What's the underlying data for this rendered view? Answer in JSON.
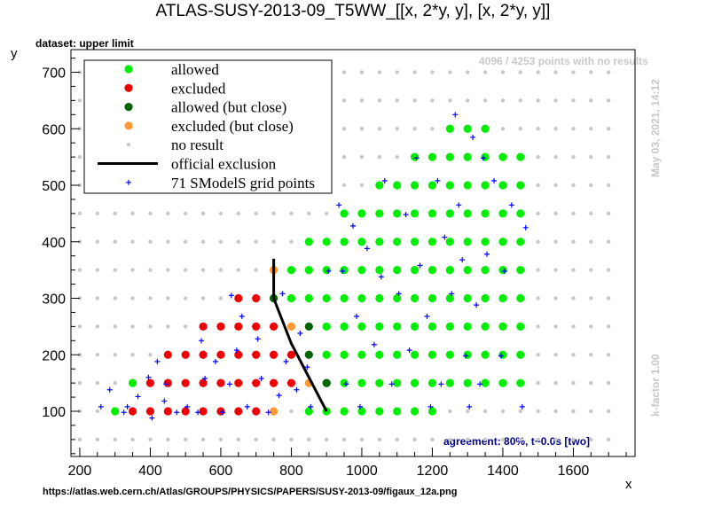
{
  "chart_data": {
    "type": "scatter",
    "title": "ATLAS-SUSY-2013-09_T5WW_[[x, 2*y, y], [x, 2*y, y]]",
    "subtitle": "dataset: upper limit",
    "xlabel": "x",
    "ylabel": "y",
    "xlim": [
      175,
      1775
    ],
    "ylim": [
      20,
      740
    ],
    "xticks": [
      200,
      400,
      600,
      800,
      1000,
      1200,
      1400,
      1600
    ],
    "yticks": [
      100,
      200,
      300,
      400,
      500,
      600,
      700
    ],
    "grid": false,
    "legend_position": "top-left",
    "annotations": {
      "no_results": "4096 / 4253 points with no results",
      "timestamp": "May 03, 2021, 14:12",
      "kfactor": "k-factor 1.00",
      "agreement": "agreement: 80%, t~0.0s [two]",
      "source_url": "https://atlas.web.cern.ch/Atlas/GROUPS/PHYSICS/PAPERS/SUSY-2013-09/figaux_12a.png"
    },
    "colors": {
      "allowed": "#00ee00",
      "excluded": "#ee0000",
      "allowed_close": "#006400",
      "excluded_close": "#ff9933",
      "no_result": "#c8c8c8",
      "official": "#000000",
      "grid_points": "#0000ff"
    },
    "series": [
      {
        "name": "allowed",
        "marker": "circle",
        "points": [
          [
            300,
            100
          ],
          [
            350,
            150
          ],
          [
            850,
            100
          ],
          [
            900,
            100
          ],
          [
            950,
            100
          ],
          [
            1000,
            100
          ],
          [
            1050,
            100
          ],
          [
            1100,
            100
          ],
          [
            1150,
            100
          ],
          [
            1200,
            100
          ],
          [
            900,
            150
          ],
          [
            950,
            150
          ],
          [
            1000,
            150
          ],
          [
            1050,
            150
          ],
          [
            1100,
            150
          ],
          [
            1150,
            150
          ],
          [
            1200,
            150
          ],
          [
            1250,
            150
          ],
          [
            1300,
            150
          ],
          [
            1350,
            150
          ],
          [
            1400,
            150
          ],
          [
            1450,
            150
          ],
          [
            900,
            200
          ],
          [
            950,
            200
          ],
          [
            1000,
            200
          ],
          [
            1050,
            200
          ],
          [
            1100,
            200
          ],
          [
            1150,
            200
          ],
          [
            1200,
            200
          ],
          [
            1250,
            200
          ],
          [
            1300,
            200
          ],
          [
            1350,
            200
          ],
          [
            1400,
            200
          ],
          [
            1450,
            200
          ],
          [
            900,
            250
          ],
          [
            950,
            250
          ],
          [
            1000,
            250
          ],
          [
            1050,
            250
          ],
          [
            1100,
            250
          ],
          [
            1150,
            250
          ],
          [
            1200,
            250
          ],
          [
            1250,
            250
          ],
          [
            1300,
            250
          ],
          [
            1350,
            250
          ],
          [
            1400,
            250
          ],
          [
            1450,
            250
          ],
          [
            800,
            300
          ],
          [
            850,
            300
          ],
          [
            900,
            300
          ],
          [
            950,
            300
          ],
          [
            1000,
            300
          ],
          [
            1050,
            300
          ],
          [
            1100,
            300
          ],
          [
            1150,
            300
          ],
          [
            1200,
            300
          ],
          [
            1250,
            300
          ],
          [
            1300,
            300
          ],
          [
            1350,
            300
          ],
          [
            1400,
            300
          ],
          [
            1450,
            300
          ],
          [
            800,
            350
          ],
          [
            850,
            350
          ],
          [
            900,
            350
          ],
          [
            950,
            350
          ],
          [
            1000,
            350
          ],
          [
            1050,
            350
          ],
          [
            1100,
            350
          ],
          [
            1150,
            350
          ],
          [
            1200,
            350
          ],
          [
            1250,
            350
          ],
          [
            1300,
            350
          ],
          [
            1350,
            350
          ],
          [
            1400,
            350
          ],
          [
            1450,
            350
          ],
          [
            850,
            400
          ],
          [
            900,
            400
          ],
          [
            950,
            400
          ],
          [
            1000,
            400
          ],
          [
            1050,
            400
          ],
          [
            1100,
            400
          ],
          [
            1150,
            400
          ],
          [
            1200,
            400
          ],
          [
            1250,
            400
          ],
          [
            1300,
            400
          ],
          [
            1350,
            400
          ],
          [
            1400,
            400
          ],
          [
            1450,
            400
          ],
          [
            950,
            450
          ],
          [
            1000,
            450
          ],
          [
            1050,
            450
          ],
          [
            1100,
            450
          ],
          [
            1150,
            450
          ],
          [
            1200,
            450
          ],
          [
            1250,
            450
          ],
          [
            1300,
            450
          ],
          [
            1350,
            450
          ],
          [
            1400,
            450
          ],
          [
            1450,
            450
          ],
          [
            1050,
            500
          ],
          [
            1100,
            500
          ],
          [
            1150,
            500
          ],
          [
            1200,
            500
          ],
          [
            1250,
            500
          ],
          [
            1300,
            500
          ],
          [
            1350,
            500
          ],
          [
            1400,
            500
          ],
          [
            1450,
            500
          ],
          [
            1150,
            550
          ],
          [
            1200,
            550
          ],
          [
            1250,
            550
          ],
          [
            1300,
            550
          ],
          [
            1350,
            550
          ],
          [
            1400,
            550
          ],
          [
            1450,
            550
          ],
          [
            1250,
            600
          ],
          [
            1300,
            600
          ],
          [
            1350,
            600
          ]
        ]
      },
      {
        "name": "excluded",
        "marker": "circle",
        "points": [
          [
            350,
            100
          ],
          [
            400,
            100
          ],
          [
            450,
            100
          ],
          [
            500,
            100
          ],
          [
            550,
            100
          ],
          [
            600,
            100
          ],
          [
            650,
            100
          ],
          [
            700,
            100
          ],
          [
            400,
            150
          ],
          [
            450,
            150
          ],
          [
            500,
            150
          ],
          [
            550,
            150
          ],
          [
            600,
            150
          ],
          [
            650,
            150
          ],
          [
            700,
            150
          ],
          [
            750,
            150
          ],
          [
            800,
            150
          ],
          [
            450,
            200
          ],
          [
            500,
            200
          ],
          [
            550,
            200
          ],
          [
            600,
            200
          ],
          [
            650,
            200
          ],
          [
            700,
            200
          ],
          [
            750,
            200
          ],
          [
            800,
            200
          ],
          [
            550,
            250
          ],
          [
            600,
            250
          ],
          [
            650,
            250
          ],
          [
            700,
            250
          ],
          [
            750,
            250
          ],
          [
            650,
            300
          ],
          [
            700,
            300
          ]
        ]
      },
      {
        "name": "allowed (but close)",
        "marker": "circle",
        "points": [
          [
            750,
            300
          ],
          [
            850,
            250
          ],
          [
            850,
            200
          ],
          [
            900,
            150
          ]
        ]
      },
      {
        "name": "excluded (but close)",
        "marker": "circle",
        "points": [
          [
            750,
            350
          ],
          [
            800,
            250
          ],
          [
            850,
            150
          ],
          [
            750,
            100
          ]
        ]
      },
      {
        "name": "no result",
        "marker": "small-circle",
        "grid": {
          "x_start": 200,
          "x_end": 1700,
          "x_step": 50,
          "y_start": 50,
          "y_end": 700,
          "y_step": 50
        }
      },
      {
        "name": "official exclusion",
        "marker": "line",
        "points": [
          [
            750,
            370
          ],
          [
            750,
            300
          ],
          [
            800,
            220
          ],
          [
            900,
            100
          ]
        ]
      },
      {
        "name": "71 SModelS grid points",
        "marker": "plus",
        "points": [
          [
            260,
            108
          ],
          [
            285,
            138
          ],
          [
            325,
            98
          ],
          [
            335,
            108
          ],
          [
            365,
            126
          ],
          [
            395,
            160
          ],
          [
            405,
            88
          ],
          [
            420,
            188
          ],
          [
            440,
            118
          ],
          [
            445,
            148
          ],
          [
            475,
            98
          ],
          [
            505,
            108
          ],
          [
            535,
            98
          ],
          [
            545,
            225
          ],
          [
            555,
            158
          ],
          [
            585,
            188
          ],
          [
            605,
            98
          ],
          [
            625,
            148
          ],
          [
            630,
            305
          ],
          [
            645,
            208
          ],
          [
            660,
            268
          ],
          [
            675,
            108
          ],
          [
            705,
            228
          ],
          [
            715,
            158
          ],
          [
            735,
            98
          ],
          [
            765,
            128
          ],
          [
            775,
            308
          ],
          [
            785,
            188
          ],
          [
            815,
            138
          ],
          [
            825,
            238
          ],
          [
            845,
            178
          ],
          [
            855,
            108
          ],
          [
            905,
            348
          ],
          [
            935,
            465
          ],
          [
            945,
            348
          ],
          [
            955,
            148
          ],
          [
            975,
            428
          ],
          [
            985,
            268
          ],
          [
            995,
            108
          ],
          [
            1015,
            388
          ],
          [
            1035,
            218
          ],
          [
            1055,
            338
          ],
          [
            1065,
            508
          ],
          [
            1085,
            148
          ],
          [
            1105,
            308
          ],
          [
            1125,
            448
          ],
          [
            1135,
            208
          ],
          [
            1155,
            548
          ],
          [
            1165,
            358
          ],
          [
            1185,
            268
          ],
          [
            1195,
            108
          ],
          [
            1215,
            508
          ],
          [
            1225,
            148
          ],
          [
            1235,
            408
          ],
          [
            1255,
            308
          ],
          [
            1265,
            625
          ],
          [
            1275,
            465
          ],
          [
            1285,
            368
          ],
          [
            1295,
            198
          ],
          [
            1305,
            108
          ],
          [
            1315,
            585
          ],
          [
            1325,
            288
          ],
          [
            1335,
            148
          ],
          [
            1345,
            548
          ],
          [
            1355,
            378
          ],
          [
            1375,
            508
          ],
          [
            1395,
            198
          ],
          [
            1405,
            348
          ],
          [
            1425,
            465
          ],
          [
            1455,
            108
          ],
          [
            1465,
            425
          ]
        ]
      }
    ]
  }
}
